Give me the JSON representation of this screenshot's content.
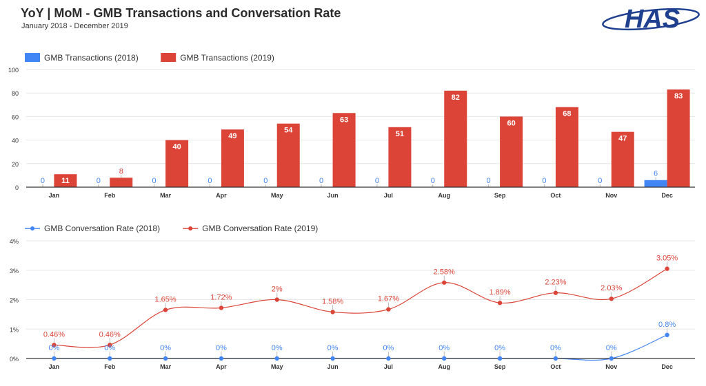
{
  "header": {
    "title": "YoY | MoM - GMB Transactions and Conversation Rate",
    "subtitle": "January 2018 - December 2019",
    "logo_text": "HAS"
  },
  "colors": {
    "series_2018": "#4285f4",
    "series_2019": "#db4437",
    "grid": "#e6e6e6",
    "axis": "#333333",
    "logo": "#1f3f8f"
  },
  "chart_data": [
    {
      "type": "bar",
      "categories": [
        "Jan",
        "Feb",
        "Mar",
        "Apr",
        "May",
        "Jun",
        "Jul",
        "Aug",
        "Sep",
        "Oct",
        "Nov",
        "Dec"
      ],
      "series": [
        {
          "name": "GMB Transactions (2018)",
          "values": [
            0,
            0,
            0,
            0,
            0,
            0,
            0,
            0,
            0,
            0,
            0,
            6
          ]
        },
        {
          "name": "GMB Transactions (2019)",
          "values": [
            11,
            8,
            40,
            49,
            54,
            63,
            51,
            82,
            60,
            68,
            47,
            83
          ]
        }
      ],
      "yticks": [
        "0",
        "20",
        "40",
        "60",
        "80",
        "100"
      ],
      "ylim": [
        0,
        100
      ],
      "grid": true,
      "legend": "top-left"
    },
    {
      "type": "line",
      "categories": [
        "Jan",
        "Feb",
        "Mar",
        "Apr",
        "May",
        "Jun",
        "Jul",
        "Aug",
        "Sep",
        "Oct",
        "Nov",
        "Dec"
      ],
      "series": [
        {
          "name": "GMB Conversation Rate (2018)",
          "values": [
            0,
            0,
            0,
            0,
            0,
            0,
            0,
            0,
            0,
            0,
            0,
            0.8
          ],
          "labels": [
            "0%",
            "0%",
            "0%",
            "0%",
            "0%",
            "0%",
            "0%",
            "0%",
            "0%",
            "0%",
            "0%",
            "0.8%"
          ]
        },
        {
          "name": "GMB Conversation Rate (2019)",
          "values": [
            0.46,
            0.46,
            1.65,
            1.72,
            2,
            1.58,
            1.67,
            2.58,
            1.89,
            2.23,
            2.03,
            3.05
          ],
          "labels": [
            "0.46%",
            "0.46%",
            "1.65%",
            "1.72%",
            "2%",
            "1.58%",
            "1.67%",
            "2.58%",
            "1.89%",
            "2.23%",
            "2.03%",
            "3.05%"
          ]
        }
      ],
      "yticks": [
        "0%",
        "1%",
        "2%",
        "3%",
        "4%"
      ],
      "ylim": [
        0,
        4
      ],
      "grid": true,
      "legend": "top-left"
    }
  ]
}
